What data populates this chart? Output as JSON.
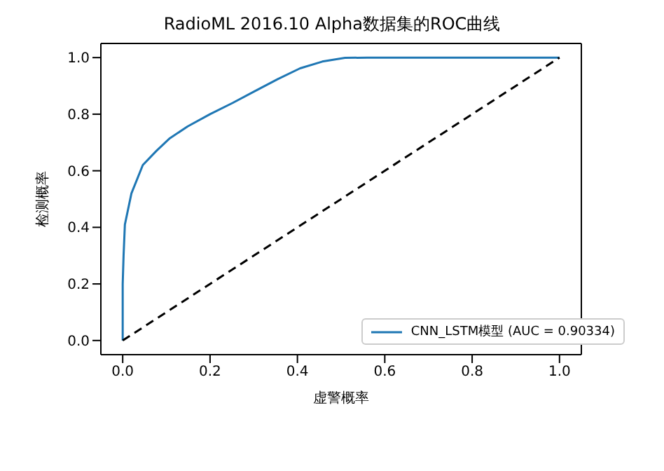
{
  "chart_data": {
    "type": "line",
    "title": "RadioML 2016.10 Alpha数据集的ROC曲线",
    "xlabel": "虚警概率",
    "ylabel": "检测概率",
    "xlim": [
      -0.05,
      1.05
    ],
    "ylim": [
      -0.05,
      1.05
    ],
    "xticks": [
      {
        "value": 0,
        "label": "0.0"
      },
      {
        "value": 0.2,
        "label": "0.2"
      },
      {
        "value": 0.4,
        "label": "0.4"
      },
      {
        "value": 0.6,
        "label": "0.6"
      },
      {
        "value": 0.8,
        "label": "0.8"
      },
      {
        "value": 1,
        "label": "1.0"
      }
    ],
    "yticks": [
      {
        "value": 0,
        "label": "0.0"
      },
      {
        "value": 0.2,
        "label": "0.2"
      },
      {
        "value": 0.4,
        "label": "0.4"
      },
      {
        "value": 0.6,
        "label": "0.6"
      },
      {
        "value": 0.8,
        "label": "0.8"
      },
      {
        "value": 1,
        "label": "1.0"
      }
    ],
    "legend": "bottom right",
    "series": [
      {
        "name": "CNN_LSTM模型 (AUC = 0.90334)",
        "color": "#1f77b4",
        "line_style": "solid",
        "x": [
          0,
          0,
          0.002,
          0.005,
          0.02,
          0.046,
          0.077,
          0.108,
          0.149,
          0.2,
          0.252,
          0.303,
          0.355,
          0.406,
          0.457,
          0.509,
          0.56,
          1
        ],
        "values": [
          0,
          0.2,
          0.3,
          0.41,
          0.52,
          0.62,
          0.67,
          0.715,
          0.757,
          0.8,
          0.84,
          0.882,
          0.924,
          0.962,
          0.986,
          0.999,
          1,
          1
        ]
      },
      {
        "color": "#000000",
        "line_style": "dashed",
        "x": [
          0,
          1
        ],
        "values": [
          0,
          1
        ]
      }
    ]
  }
}
